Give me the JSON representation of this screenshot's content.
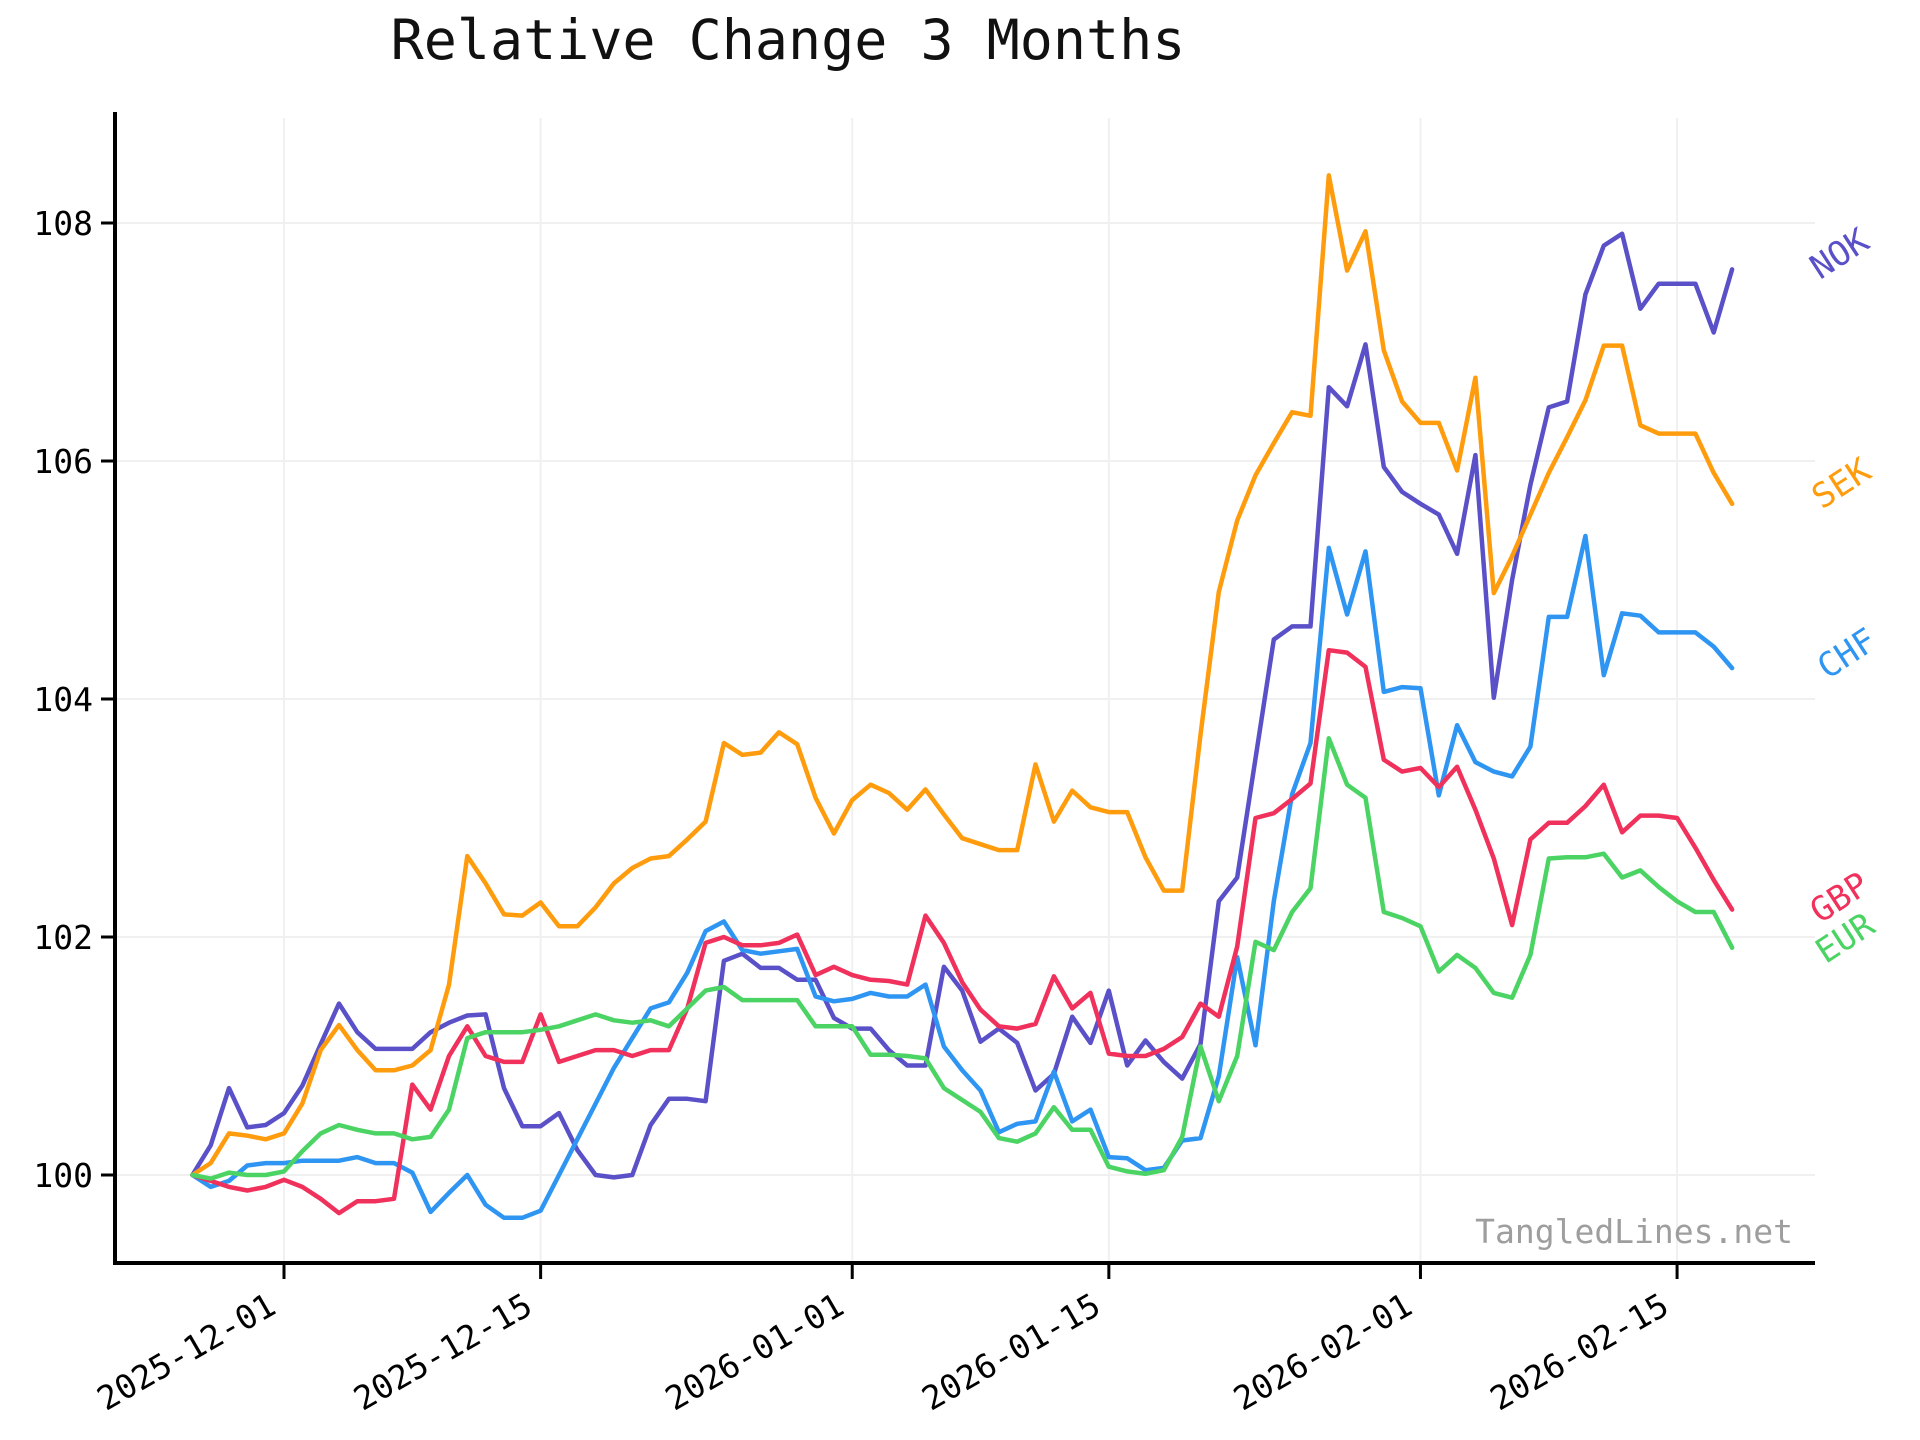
{
  "title": "Relative Change 3 Months",
  "watermark": "TangledLines.net",
  "chart_data": {
    "type": "line",
    "title": "Relative Change 3 Months",
    "x_start_date": "2025-11-26",
    "x_unit": "day",
    "n_points": 85,
    "x_ticks": [
      {
        "label": "2025-12-01",
        "day": 5
      },
      {
        "label": "2025-12-15",
        "day": 19
      },
      {
        "label": "2026-01-01",
        "day": 36
      },
      {
        "label": "2026-01-15",
        "day": 50
      },
      {
        "label": "2026-02-01",
        "day": 67
      },
      {
        "label": "2026-02-15",
        "day": 81
      }
    ],
    "y_ticks": [
      100,
      102,
      104,
      106,
      108
    ],
    "ylim": [
      99.25,
      108.9
    ],
    "grid": true,
    "grid_color": "#f0f0f0",
    "legend_position": "line-end-right",
    "series": [
      {
        "name": "NOK",
        "color": "#5a50c8",
        "label": {
          "day": 90.2,
          "value": 107.66,
          "rotation": -33
        },
        "values": [
          100.0,
          100.25,
          100.73,
          100.4,
          100.42,
          100.52,
          100.75,
          101.1,
          101.44,
          101.2,
          101.06,
          101.06,
          101.06,
          101.2,
          101.28,
          101.34,
          101.35,
          100.73,
          100.41,
          100.41,
          100.52,
          100.21,
          100.0,
          99.98,
          100.0,
          100.42,
          100.64,
          100.64,
          100.62,
          101.8,
          101.86,
          101.74,
          101.74,
          101.64,
          101.64,
          101.32,
          101.23,
          101.23,
          101.05,
          100.92,
          100.92,
          101.75,
          101.55,
          101.12,
          101.23,
          101.11,
          100.71,
          100.85,
          101.33,
          101.11,
          101.55,
          100.92,
          101.13,
          100.95,
          100.81,
          101.1,
          102.3,
          102.5,
          103.5,
          104.5,
          104.61,
          104.61,
          106.62,
          106.46,
          106.98,
          105.95,
          105.74,
          105.64,
          105.55,
          105.22,
          106.05,
          104.01,
          105.0,
          105.8,
          106.45,
          106.5,
          107.4,
          107.81,
          107.91,
          107.28,
          107.49,
          107.49,
          107.49,
          107.08,
          107.61
        ]
      },
      {
        "name": "SEK",
        "color": "#ff9c0d",
        "label": {
          "day": 90.3,
          "value": 105.73,
          "rotation": -33
        },
        "values": [
          100.0,
          100.1,
          100.35,
          100.33,
          100.3,
          100.35,
          100.6,
          101.05,
          101.26,
          101.05,
          100.88,
          100.88,
          100.92,
          101.05,
          101.6,
          102.68,
          102.45,
          102.19,
          102.18,
          102.29,
          102.09,
          102.09,
          102.25,
          102.45,
          102.58,
          102.66,
          102.68,
          102.82,
          102.97,
          103.63,
          103.53,
          103.55,
          103.72,
          103.62,
          103.17,
          102.87,
          103.15,
          103.28,
          103.21,
          103.07,
          103.24,
          103.03,
          102.83,
          102.78,
          102.73,
          102.73,
          103.45,
          102.97,
          103.23,
          103.09,
          103.05,
          103.05,
          102.67,
          102.39,
          102.39,
          103.7,
          104.9,
          105.5,
          105.88,
          106.15,
          106.41,
          106.38,
          108.4,
          107.6,
          107.93,
          106.93,
          106.5,
          106.32,
          106.32,
          105.92,
          106.7,
          104.89,
          105.2,
          105.55,
          105.9,
          106.2,
          106.51,
          106.97,
          106.97,
          106.3,
          106.23,
          106.23,
          106.23,
          105.9,
          105.64
        ]
      },
      {
        "name": "CHF",
        "color": "#2e95f2",
        "label": {
          "day": 90.6,
          "value": 104.3,
          "rotation": -33
        },
        "values": [
          100.0,
          99.9,
          99.95,
          100.08,
          100.1,
          100.1,
          100.12,
          100.12,
          100.12,
          100.15,
          100.1,
          100.1,
          100.02,
          99.69,
          99.85,
          100.0,
          99.75,
          99.64,
          99.64,
          99.7,
          100.0,
          100.3,
          100.6,
          100.9,
          101.15,
          101.4,
          101.45,
          101.7,
          102.05,
          102.13,
          101.89,
          101.86,
          101.88,
          101.9,
          101.5,
          101.46,
          101.48,
          101.53,
          101.5,
          101.5,
          101.6,
          101.08,
          100.88,
          100.71,
          100.36,
          100.43,
          100.45,
          100.87,
          100.45,
          100.55,
          100.15,
          100.14,
          100.04,
          100.06,
          100.29,
          100.31,
          100.83,
          101.83,
          101.09,
          102.3,
          103.2,
          103.63,
          105.27,
          104.71,
          105.24,
          104.06,
          104.1,
          104.09,
          103.19,
          103.78,
          103.47,
          103.39,
          103.35,
          103.6,
          104.69,
          104.69,
          105.37,
          104.2,
          104.72,
          104.7,
          104.56,
          104.56,
          104.56,
          104.44,
          104.26
        ]
      },
      {
        "name": "GBP",
        "color": "#f0315c",
        "label": {
          "day": 90.2,
          "value": 102.25,
          "rotation": -33
        },
        "values": [
          100.0,
          99.95,
          99.9,
          99.87,
          99.9,
          99.96,
          99.9,
          99.8,
          99.68,
          99.78,
          99.78,
          99.8,
          100.76,
          100.55,
          101.0,
          101.25,
          101.0,
          100.95,
          100.95,
          101.35,
          100.95,
          101.0,
          101.05,
          101.05,
          101.0,
          101.05,
          101.05,
          101.4,
          101.95,
          102.0,
          101.93,
          101.93,
          101.95,
          102.02,
          101.68,
          101.75,
          101.68,
          101.64,
          101.63,
          101.6,
          102.18,
          101.95,
          101.62,
          101.39,
          101.25,
          101.23,
          101.27,
          101.67,
          101.4,
          101.53,
          101.02,
          101.0,
          101.0,
          101.06,
          101.16,
          101.44,
          101.33,
          101.92,
          103.0,
          103.04,
          103.16,
          103.29,
          104.41,
          104.39,
          104.27,
          103.49,
          103.39,
          103.42,
          103.26,
          103.43,
          103.07,
          102.66,
          102.1,
          102.82,
          102.96,
          102.96,
          103.1,
          103.28,
          102.88,
          103.02,
          103.02,
          103.0,
          102.75,
          102.48,
          102.23
        ]
      },
      {
        "name": "EUR",
        "color": "#4bd364",
        "label": {
          "day": 90.5,
          "value": 101.91,
          "rotation": -33
        },
        "values": [
          100.0,
          99.97,
          100.02,
          100.0,
          100.0,
          100.03,
          100.2,
          100.35,
          100.42,
          100.38,
          100.35,
          100.35,
          100.3,
          100.32,
          100.55,
          101.15,
          101.2,
          101.2,
          101.2,
          101.22,
          101.25,
          101.3,
          101.35,
          101.3,
          101.28,
          101.3,
          101.25,
          101.4,
          101.55,
          101.58,
          101.47,
          101.47,
          101.47,
          101.47,
          101.25,
          101.25,
          101.25,
          101.01,
          101.01,
          101.0,
          100.98,
          100.73,
          100.63,
          100.53,
          100.31,
          100.28,
          100.35,
          100.57,
          100.38,
          100.38,
          100.07,
          100.03,
          100.01,
          100.04,
          100.32,
          101.08,
          100.62,
          101.0,
          101.96,
          101.89,
          102.21,
          102.41,
          103.67,
          103.28,
          103.17,
          102.21,
          102.16,
          102.09,
          101.71,
          101.85,
          101.74,
          101.53,
          101.49,
          101.85,
          102.66,
          102.67,
          102.67,
          102.7,
          102.5,
          102.56,
          102.42,
          102.3,
          102.21,
          102.21,
          101.91
        ]
      }
    ]
  }
}
